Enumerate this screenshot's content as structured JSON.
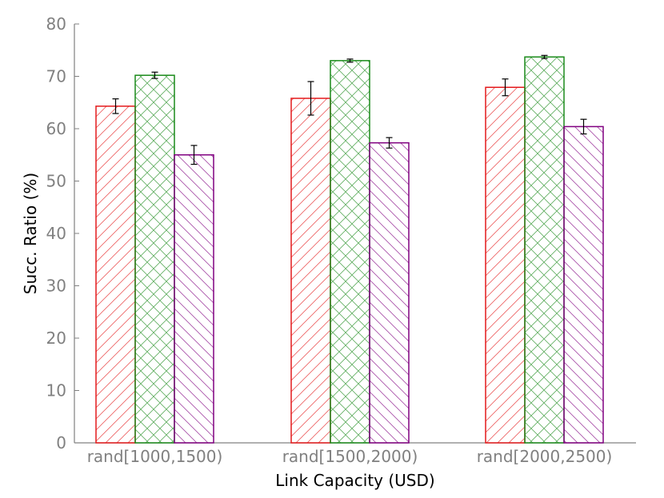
{
  "chart_data": {
    "type": "bar",
    "title": "",
    "xlabel": "Link Capacity (USD)",
    "ylabel": "Succ. Ratio (%)",
    "ylim": [
      0,
      80
    ],
    "yticks": [
      0,
      10,
      20,
      30,
      40,
      50,
      60,
      70,
      80
    ],
    "categories": [
      "rand[1000,1500)",
      "rand[1500,2000)",
      "rand[2000,2500)"
    ],
    "grid": false,
    "legend": "none",
    "series": [
      {
        "color": "#e41a1c",
        "hatch": "diagonal-up",
        "values": [
          64.3,
          65.8,
          67.9
        ],
        "error": [
          1.4,
          3.2,
          1.6
        ]
      },
      {
        "color": "#1a8a1a",
        "hatch": "crosshatch",
        "values": [
          70.2,
          73.0,
          73.7
        ],
        "error": [
          0.6,
          0.3,
          0.3
        ]
      },
      {
        "color": "#800080",
        "hatch": "diagonal-down",
        "values": [
          55.0,
          57.3,
          60.4
        ],
        "error": [
          1.8,
          1.0,
          1.4
        ]
      }
    ]
  }
}
